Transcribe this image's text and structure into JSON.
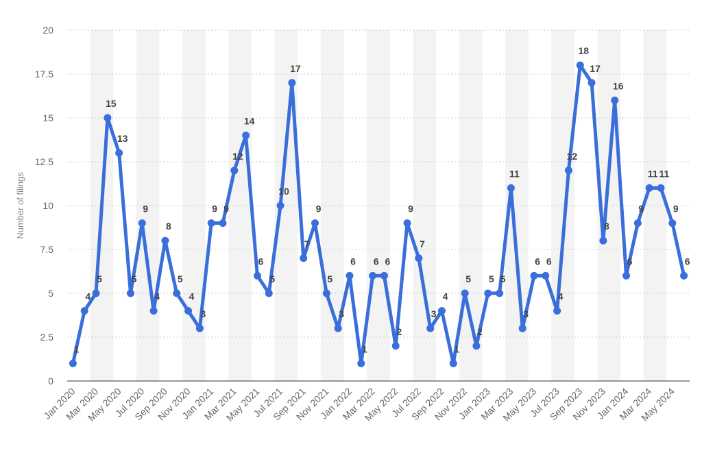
{
  "chart_data": {
    "type": "line",
    "ylabel": "Number of filings",
    "xlabel": "",
    "ylim": [
      0,
      20
    ],
    "yticks": [
      0,
      2.5,
      5,
      7.5,
      10,
      12.5,
      15,
      17.5,
      20
    ],
    "ytick_labels": [
      "0",
      "2.5",
      "5",
      "7.5",
      "10",
      "12.5",
      "15",
      "17.5",
      "20"
    ],
    "x": [
      "Jan 2020",
      "Feb 2020",
      "Mar 2020",
      "Apr 2020",
      "May 2020",
      "Jun 2020",
      "Jul 2020",
      "Aug 2020",
      "Sep 2020",
      "Oct 2020",
      "Nov 2020",
      "Dec 2020",
      "Jan 2021",
      "Feb 2021",
      "Mar 2021",
      "Apr 2021",
      "May 2021",
      "Jun 2021",
      "Jul 2021",
      "Aug 2021",
      "Sep 2021",
      "Oct 2021",
      "Nov 2021",
      "Dec 2021",
      "Jan 2022",
      "Feb 2022",
      "Mar 2022",
      "Apr 2022",
      "May 2022",
      "Jun 2022",
      "Jul 2022",
      "Aug 2022",
      "Sep 2022",
      "Oct 2022",
      "Nov 2022",
      "Dec 2022",
      "Jan 2023",
      "Feb 2023",
      "Mar 2023",
      "Apr 2023",
      "May 2023",
      "Jun 2023",
      "Jul 2023",
      "Aug 2023",
      "Sep 2023",
      "Oct 2023",
      "Nov 2023",
      "Dec 2023",
      "Jan 2024",
      "Feb 2024",
      "Mar 2024",
      "Apr 2024",
      "May 2024",
      "Jun 2024"
    ],
    "xtick_labels": [
      "Jan 2020",
      "Mar 2020",
      "May 2020",
      "Jul 2020",
      "Sep 2020",
      "Nov 2020",
      "Jan 2021",
      "Mar 2021",
      "May 2021",
      "Jul 2021",
      "Sep 2021",
      "Nov 2021",
      "Jan 2022",
      "Mar 2022",
      "May 2022",
      "Jul 2022",
      "Sep 2022",
      "Nov 2022",
      "Jan 2023",
      "Mar 2023",
      "May 2023",
      "Jul 2023",
      "Sep 2023",
      "Nov 2023",
      "Jan 2024",
      "Mar 2024",
      "May 2024"
    ],
    "series": [
      {
        "values": [
          1,
          4,
          5,
          15,
          13,
          5,
          9,
          4,
          8,
          5,
          4,
          3,
          9,
          9,
          12,
          14,
          6,
          5,
          10,
          17,
          7,
          9,
          5,
          3,
          6,
          1,
          6,
          6,
          2,
          9,
          7,
          3,
          4,
          1,
          5,
          2,
          5,
          5,
          11,
          3,
          6,
          6,
          4,
          12,
          18,
          17,
          8,
          16,
          6,
          9,
          11,
          11,
          9,
          6
        ],
        "labels": [
          "1",
          "4",
          "5",
          "15",
          "13",
          "5",
          "9",
          "4",
          "8",
          "5",
          "4",
          "3",
          "9",
          "9",
          "12",
          "14",
          "6",
          "5",
          "10",
          "17",
          "7",
          "9",
          "5",
          "3",
          "6",
          "1",
          "6",
          "6",
          "2",
          "9",
          "7",
          "3",
          "4",
          "1",
          "5",
          "2",
          "5",
          "5",
          "11",
          "3",
          "6",
          "6",
          "4",
          "12",
          "18",
          "17",
          "8",
          "16",
          "6",
          "9",
          "11",
          "11",
          "9",
          "6"
        ]
      }
    ],
    "grid": true,
    "legend": "none",
    "colors": {
      "line": "#3a6fdb",
      "grid": "#cccccc",
      "band": "#f3f3f3"
    }
  }
}
